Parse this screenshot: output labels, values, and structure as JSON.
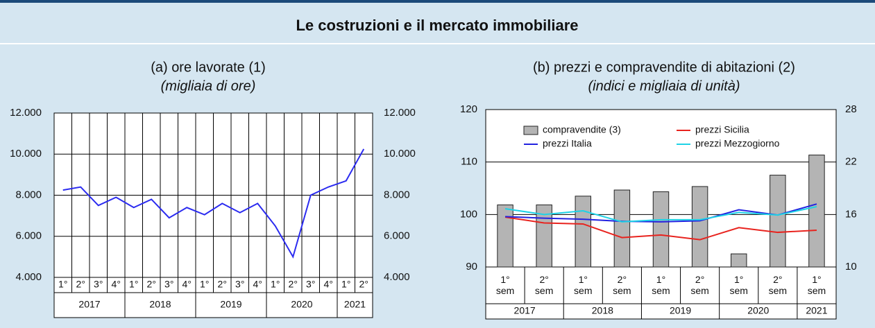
{
  "page_title": "Le costruzioni e il mercato immobiliare",
  "chart_data": [
    {
      "type": "line",
      "title": "(a) ore lavorate (1)",
      "subtitle": "(migliaia di ore)",
      "categories": [
        "1°",
        "2°",
        "3°",
        "4°",
        "1°",
        "2°",
        "3°",
        "4°",
        "1°",
        "2°",
        "3°",
        "4°",
        "1°",
        "2°",
        "3°",
        "4°",
        "1°",
        "2°"
      ],
      "groups": [
        "2017",
        "2018",
        "2019",
        "2020",
        "2021"
      ],
      "color": "#2b2bf0",
      "values": [
        8250,
        8400,
        7500,
        7900,
        7400,
        7800,
        6900,
        7400,
        7050,
        7600,
        7150,
        7600,
        6500,
        5000,
        8000,
        8400,
        8700,
        10250
      ],
      "ylim": [
        4000,
        12000
      ],
      "yticks": [
        {
          "value": 4000,
          "label": "4.000"
        },
        {
          "value": 6000,
          "label": "6.000"
        },
        {
          "value": 8000,
          "label": "8.000"
        },
        {
          "value": 10000,
          "label": "10.000"
        },
        {
          "value": 12000,
          "label": "12.000"
        }
      ],
      "grid": true
    },
    {
      "type": "bar_line",
      "title": "(b) prezzi e compravendite di abitazioni (2)",
      "subtitle": "(indici e migliaia di unità)",
      "categories": [
        "1° sem",
        "2° sem",
        "1° sem",
        "2° sem",
        "1° sem",
        "2° sem",
        "1° sem",
        "2° sem",
        "1° sem"
      ],
      "groups": [
        "2017",
        "2018",
        "2019",
        "2020",
        "2021"
      ],
      "series": [
        {
          "name": "compravendite (3)",
          "kind": "bar",
          "axis": "y2",
          "color": "#b4b4b4",
          "values": [
            17.1,
            17.1,
            18.1,
            18.8,
            18.6,
            19.2,
            11.5,
            20.5,
            22.8
          ]
        },
        {
          "name": "prezzi Sicilia",
          "kind": "line",
          "color": "#e8231e",
          "values": [
            99.5,
            98.4,
            98.2,
            95.6,
            96.1,
            95.2,
            97.5,
            96.6,
            97.0
          ]
        },
        {
          "name": "prezzi Italia",
          "kind": "line",
          "color": "#2222e0",
          "values": [
            99.6,
            99.3,
            99.1,
            98.7,
            98.6,
            98.8,
            100.9,
            99.9,
            102.0
          ]
        },
        {
          "name": "prezzi Mezzogiorno",
          "kind": "line",
          "color": "#1ed2e6",
          "values": [
            101.1,
            100.0,
            100.7,
            98.6,
            99.0,
            99.0,
            100.4,
            99.9,
            101.5
          ]
        }
      ],
      "ylim": [
        90,
        120
      ],
      "yticks": [
        90,
        100,
        110,
        120
      ],
      "y2lim": [
        10,
        28
      ],
      "y2ticks": [
        10,
        16,
        22,
        28
      ],
      "grid": true
    }
  ]
}
